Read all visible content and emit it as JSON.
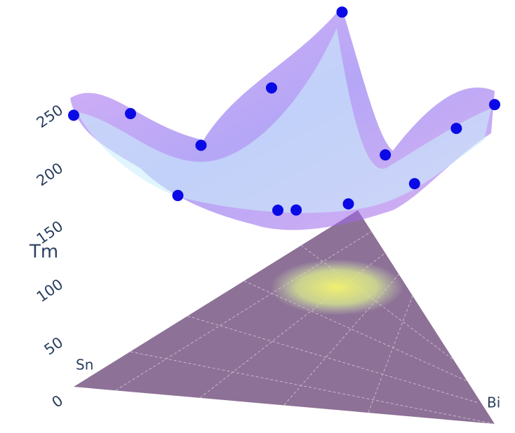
{
  "chart_data": {
    "type": "scatter3d",
    "z_label": "Tm",
    "corner_labels": [
      "Sn",
      "Bi"
    ],
    "sn": [
      1,
      0.8,
      0.6,
      0.4,
      0.2,
      0.72,
      0.45,
      0.4,
      0.25,
      0.12,
      0.07,
      0,
      0
    ],
    "bi": [
      0,
      0,
      0.1,
      0.2,
      0.3,
      0.18,
      0.35,
      0.38,
      0.45,
      0.45,
      0.56,
      0.72,
      1
    ],
    "values": [
      250,
      219,
      177,
      217,
      274,
      166,
      142,
      140,
      135,
      159,
      146,
      217,
      294
    ],
    "color": "#0a0ae6",
    "zlim": [
      0,
      300
    ],
    "zticks": [
      0,
      50,
      100,
      150,
      200,
      250
    ]
  }
}
